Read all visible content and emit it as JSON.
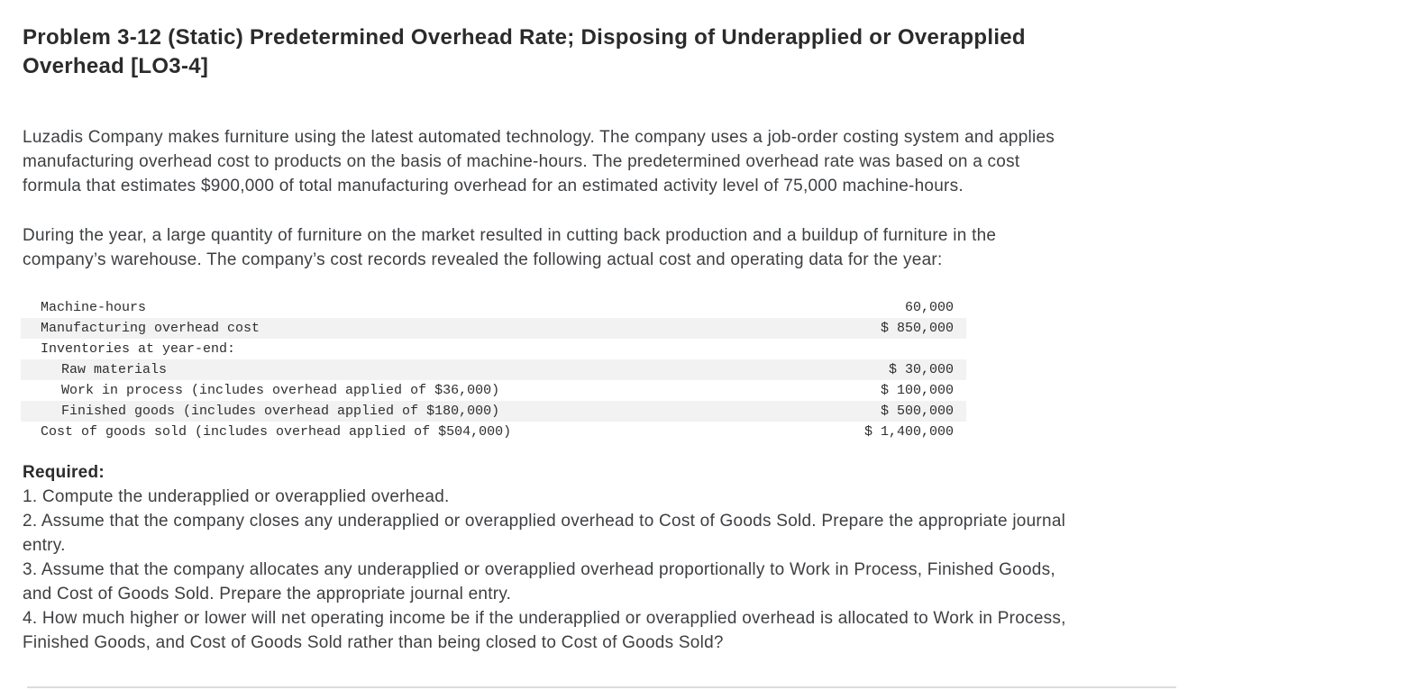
{
  "page": {
    "title": "Problem 3-12 (Static) Predetermined Overhead Rate; Disposing of Underapplied or Overapplied\nOverhead [LO3-4]"
  },
  "paragraphs": {
    "intro": "Luzadis Company makes furniture using the latest automated technology. The company uses a job-order costing system and applies\nmanufacturing overhead cost to products on the basis of machine-hours. The predetermined overhead rate was based on a cost\nformula that estimates $900,000 of total manufacturing overhead for an estimated activity level of 75,000 machine-hours.",
    "during_year": "During the year, a large quantity of furniture on the market resulted in cutting back production and a buildup of furniture in the\ncompany’s warehouse. The company’s cost records revealed the following actual cost and operating data for the year:"
  },
  "cost_table": {
    "rows": [
      {
        "label": "Machine-hours",
        "value": "60,000"
      },
      {
        "label": "Manufacturing overhead cost",
        "value": "$ 850,000"
      },
      {
        "label": "Inventories at year-end:",
        "value": ""
      },
      {
        "label": "Raw materials",
        "value": "$ 30,000"
      },
      {
        "label": "Work in process (includes overhead applied of $36,000)",
        "value": "$ 100,000"
      },
      {
        "label": "Finished goods (includes overhead applied of $180,000)",
        "value": "$ 500,000"
      },
      {
        "label": "Cost of goods sold (includes overhead applied of $504,000)",
        "value": "$ 1,400,000"
      }
    ]
  },
  "required": {
    "heading": "Required:",
    "items": [
      "1. Compute the underapplied or overapplied overhead.",
      "2. Assume that the company closes any underapplied or overapplied overhead to Cost of Goods Sold. Prepare the appropriate journal\nentry.",
      "3. Assume that the company allocates any underapplied or overapplied overhead proportionally to Work in Process, Finished Goods,\nand Cost of Goods Sold. Prepare the appropriate journal entry.",
      "4. How much higher or lower will net operating income be if the underapplied or overapplied overhead is allocated to Work in Process,\nFinished Goods, and Cost of Goods Sold rather than being closed to Cost of Goods Sold?"
    ]
  },
  "colors": {
    "table_row_shading": "#f2f2f2",
    "divider": "#dcdcdc",
    "heading_text": "#2b2b2b",
    "body_text": "#3d3f42"
  }
}
